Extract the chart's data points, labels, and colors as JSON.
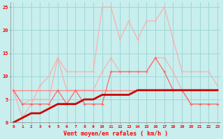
{
  "x": [
    0,
    1,
    2,
    3,
    4,
    5,
    6,
    7,
    8,
    9,
    10,
    11,
    12,
    13,
    14,
    15,
    16,
    17,
    18,
    19,
    20,
    21,
    22,
    23
  ],
  "line_gust_high": [
    7,
    1,
    4,
    8,
    10,
    14,
    11,
    11,
    11,
    11,
    25,
    25,
    18,
    22,
    18,
    22,
    22,
    25,
    18,
    11,
    11,
    11,
    11,
    8
  ],
  "line_gust_med": [
    7,
    4,
    5,
    5,
    5,
    14,
    7,
    7,
    7,
    7,
    11,
    14,
    11,
    11,
    11,
    11,
    14,
    14,
    11,
    7,
    4,
    4,
    4,
    4
  ],
  "line_flat": [
    7,
    7,
    7,
    7,
    7,
    7,
    7,
    7,
    7,
    7,
    7,
    7,
    7,
    7,
    7,
    7,
    7,
    7,
    7,
    7,
    7,
    7,
    7,
    7
  ],
  "line_wind_med": [
    7,
    4,
    4,
    4,
    4,
    7,
    4,
    7,
    4,
    4,
    4,
    11,
    11,
    11,
    11,
    11,
    14,
    11,
    7,
    7,
    4,
    4,
    4,
    4
  ],
  "line_trend": [
    0,
    1,
    2,
    2,
    3,
    4,
    4,
    4,
    5,
    5,
    6,
    6,
    6,
    6,
    7,
    7,
    7,
    7,
    7,
    7,
    7,
    7,
    7,
    7
  ],
  "bg_color": "#c8eeed",
  "grid_color": "#9ed8d8",
  "color_light": "#ffaaaa",
  "color_med": "#ff6666",
  "color_dark": "#cc0000",
  "color_flat": "#ff8888",
  "xlabel": "Vent moyen/en rafales ( km/h )",
  "ylim": [
    0,
    26
  ],
  "xlim": [
    -0.3,
    23.3
  ],
  "yticks": [
    0,
    5,
    10,
    15,
    20,
    25
  ],
  "xticks": [
    0,
    1,
    2,
    3,
    4,
    5,
    6,
    7,
    8,
    9,
    10,
    11,
    12,
    13,
    14,
    15,
    16,
    17,
    18,
    19,
    20,
    21,
    22,
    23
  ]
}
